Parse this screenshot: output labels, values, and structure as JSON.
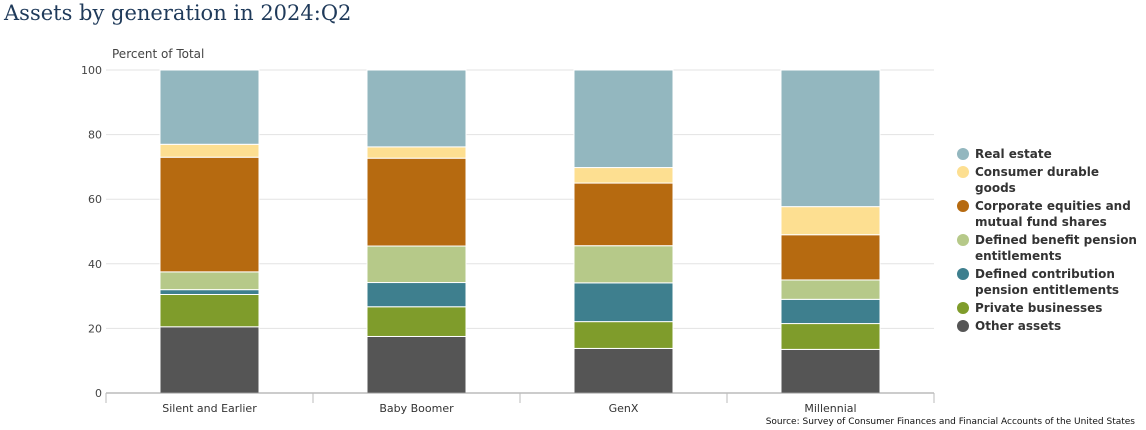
{
  "chart_data": {
    "type": "bar",
    "stacked": true,
    "title": "Assets by generation in 2024:Q2",
    "ylabel": "Percent of Total",
    "ylim": [
      0,
      100
    ],
    "yticks": [
      0,
      20,
      40,
      60,
      80,
      100
    ],
    "categories": [
      "Silent and Earlier",
      "Baby Boomer",
      "GenX",
      "Millennial"
    ],
    "series": [
      {
        "name": "Other assets",
        "color": "#555555",
        "values": [
          20.5,
          17.5,
          13.8,
          13.5
        ]
      },
      {
        "name": "Private businesses",
        "color": "#7f9c2b",
        "values": [
          10.0,
          9.2,
          8.3,
          8.0
        ]
      },
      {
        "name": "Defined contribution pension entitlements",
        "color": "#3e7f8e",
        "values": [
          1.5,
          7.5,
          12.0,
          7.5
        ]
      },
      {
        "name": "Defined benefit pension entitlements",
        "color": "#b6c989",
        "values": [
          5.5,
          11.3,
          11.5,
          6.0
        ]
      },
      {
        "name": "Corporate equities and mutual fund shares",
        "color": "#b66a10",
        "values": [
          35.5,
          27.2,
          19.4,
          14.0
        ]
      },
      {
        "name": "Consumer durable goods",
        "color": "#fddf91",
        "values": [
          4.0,
          3.5,
          4.8,
          8.7
        ]
      },
      {
        "name": "Real estate",
        "color": "#93b7bf",
        "values": [
          23.0,
          23.8,
          30.2,
          42.3
        ]
      }
    ],
    "legend_order": [
      "Real estate",
      "Consumer durable goods",
      "Corporate equities and mutual fund shares",
      "Defined benefit pension entitlements",
      "Defined contribution pension entitlements",
      "Private businesses",
      "Other assets"
    ],
    "legend_position": "right",
    "grid": true
  },
  "source": "Source: Survey of Consumer Finances and Financial Accounts of the United States"
}
